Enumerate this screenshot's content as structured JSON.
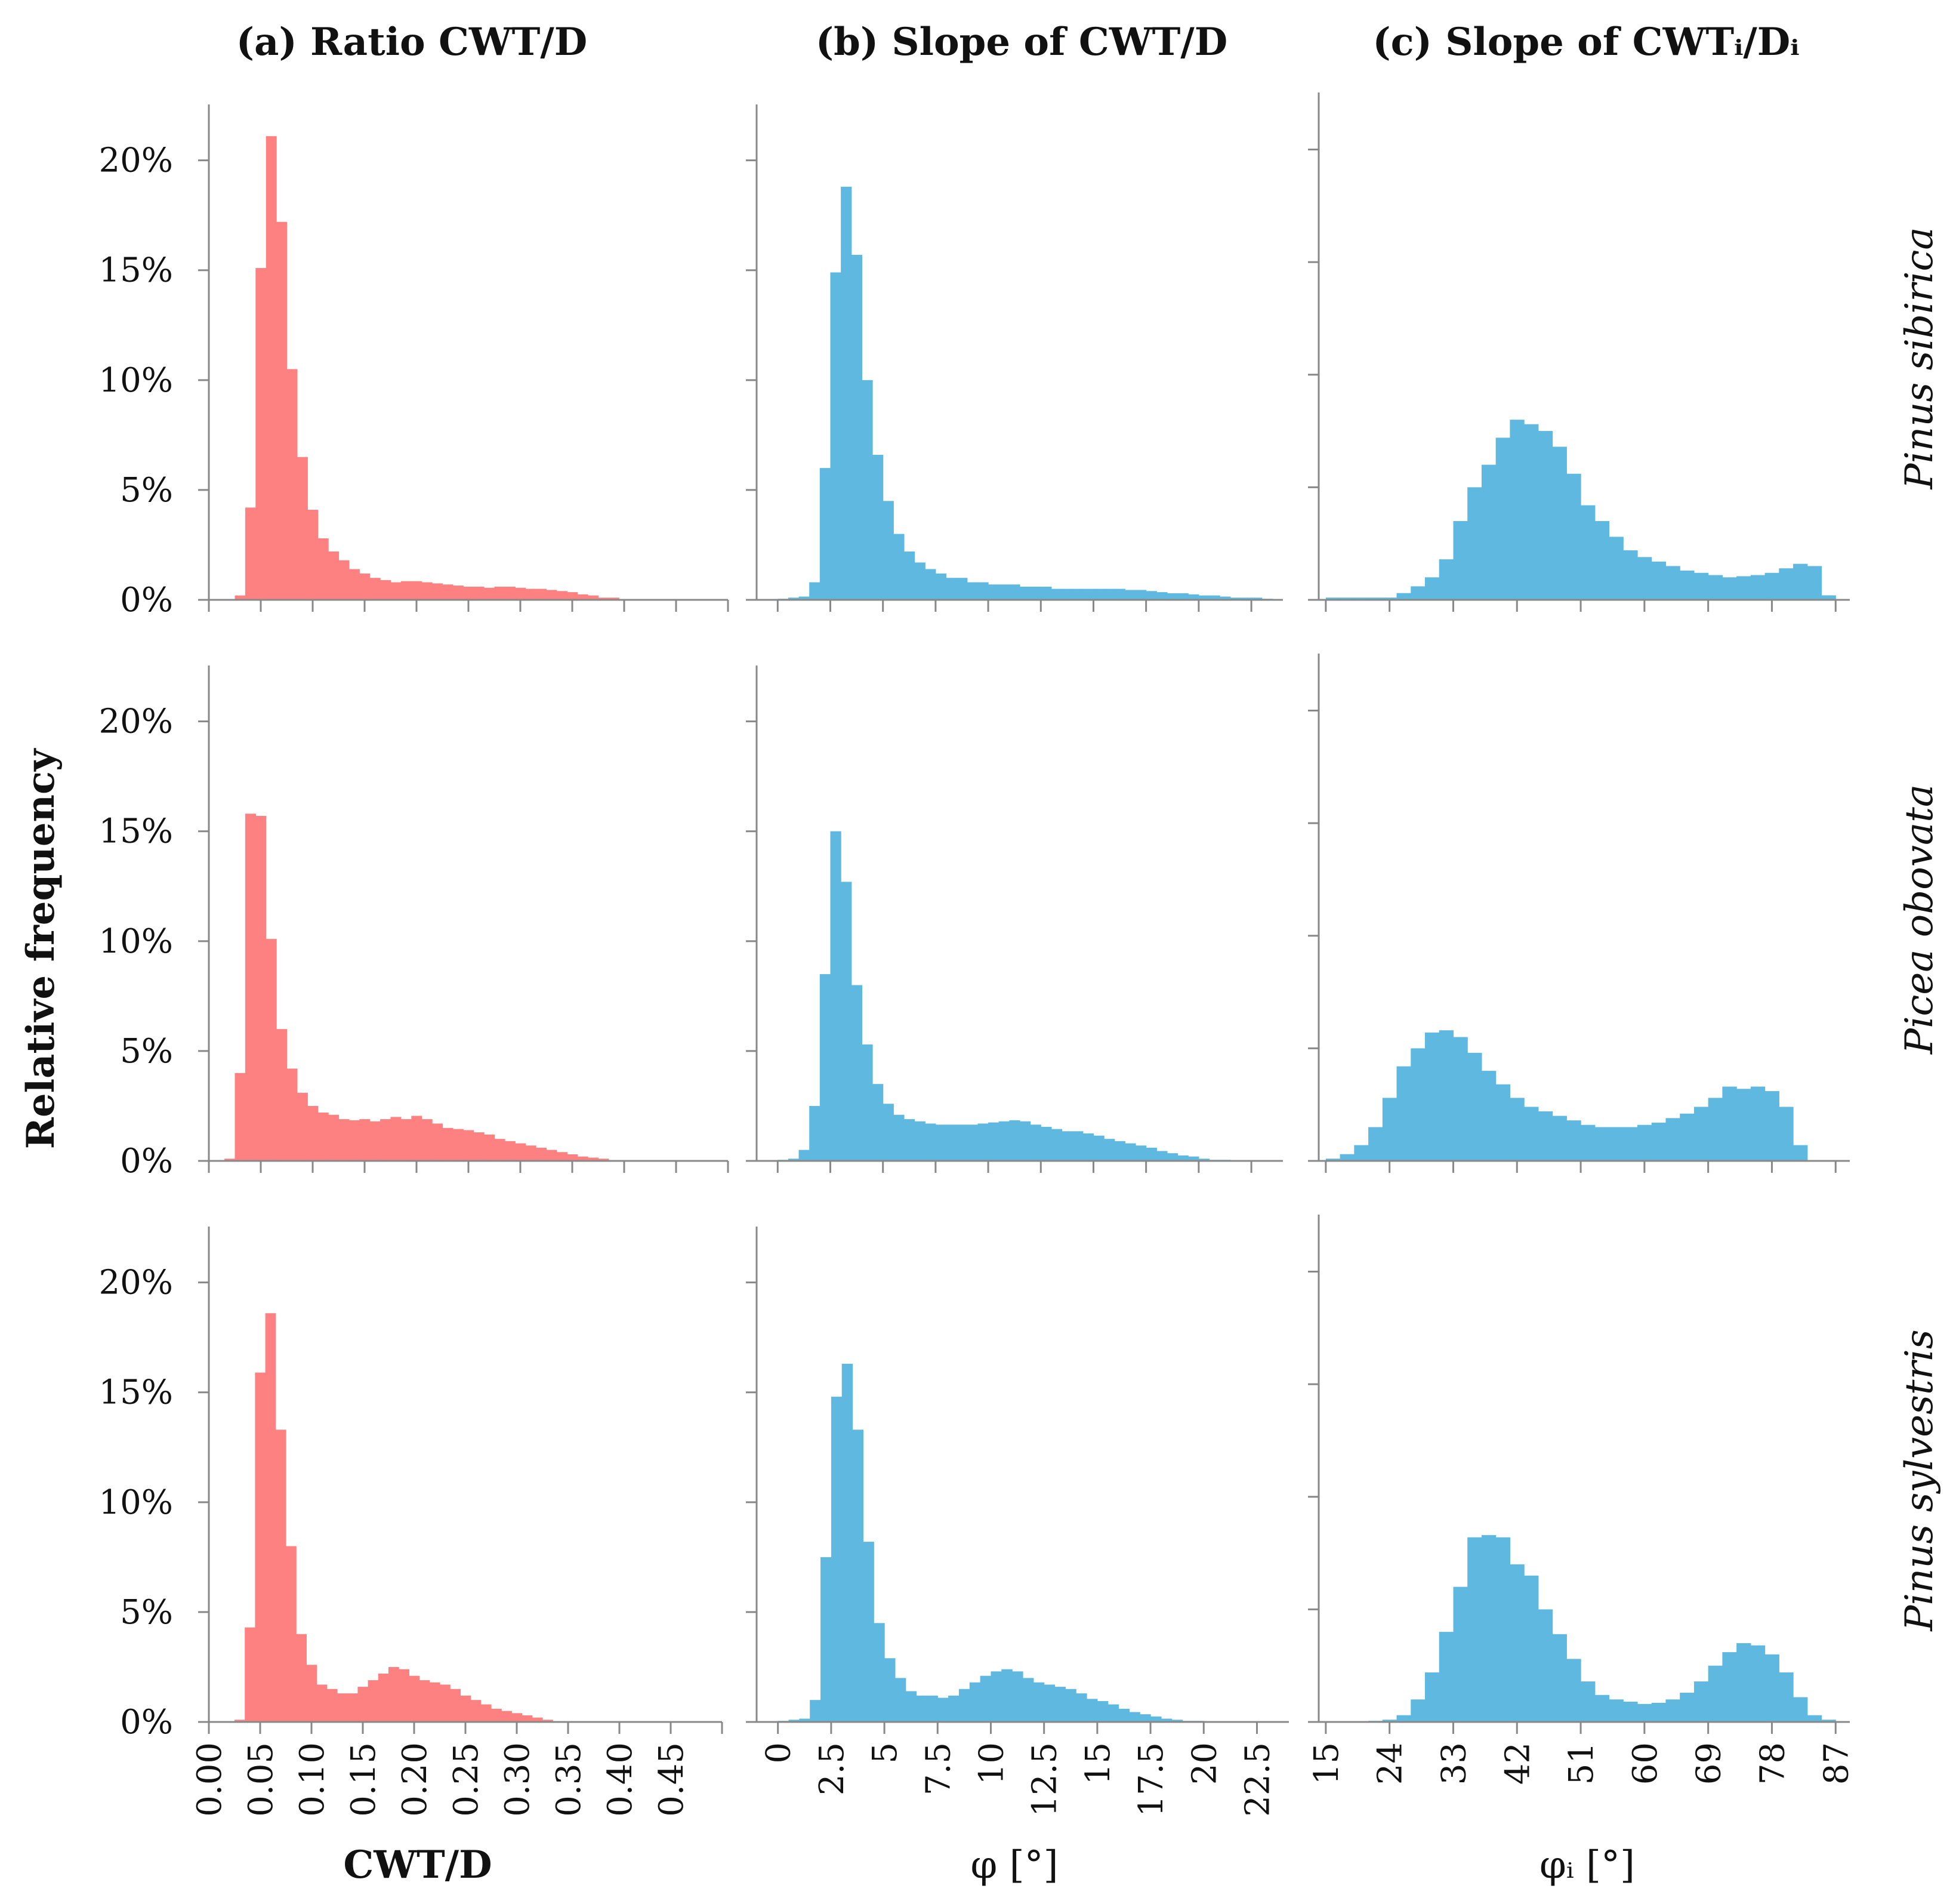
{
  "figure": {
    "column_titles": [
      "(a) Ratio CWT/D",
      "(b) Slope of CWT/D",
      "(c) Slope of CWTᵢ/Dᵢ"
    ],
    "row_labels": [
      "Pinus sibirica",
      "Picea obovata",
      "Pinus sylvestris"
    ],
    "ylabel": "Relative frequency",
    "xlabels": [
      "CWT/D",
      "φ [°]",
      "φᵢ [°]"
    ],
    "colors": {
      "cwt_ratio": "#fd8181",
      "slope": "#5fb8e0",
      "axis": "#888888"
    }
  },
  "chart_data": [
    {
      "type": "bar",
      "id": "a1",
      "title": "(a) Ratio CWT/D",
      "subtitle": "Pinus sibirica",
      "xlabel": "CWT/D",
      "ylabel": "Relative frequency",
      "bin_start": 0.025,
      "bin_width": 0.01,
      "xlim": [
        0,
        0.5
      ],
      "ylim": [
        0,
        22
      ],
      "y_unit": "%",
      "yticks": [
        "0%",
        "5%",
        "10%",
        "15%",
        "20%"
      ],
      "ytick_values": [
        0,
        5,
        10,
        15,
        20
      ],
      "values": [
        0.2,
        4.2,
        15.1,
        21.1,
        17.2,
        10.5,
        6.5,
        4.1,
        2.8,
        2.2,
        1.8,
        1.4,
        1.2,
        1.0,
        0.9,
        0.8,
        0.85,
        0.85,
        0.8,
        0.75,
        0.7,
        0.65,
        0.6,
        0.6,
        0.55,
        0.6,
        0.6,
        0.55,
        0.5,
        0.5,
        0.45,
        0.4,
        0.35,
        0.25,
        0.2,
        0.1,
        0.1
      ]
    },
    {
      "type": "bar",
      "id": "b1",
      "title": "(b) Slope of CWT/D",
      "subtitle": "Pinus sibirica",
      "xlabel": "φ [°]",
      "ylabel": "Relative frequency",
      "bin_start": -1.0,
      "bin_width": 0.5,
      "xlim": [
        -1,
        24
      ],
      "ylim": [
        0,
        22
      ],
      "y_unit": "%",
      "yticks": [],
      "ytick_values": [
        0,
        5,
        10,
        15,
        20
      ],
      "values": [
        0,
        0,
        0.05,
        0.1,
        0.15,
        0.8,
        6.0,
        14.9,
        18.8,
        15.7,
        10.0,
        6.6,
        4.5,
        3.0,
        2.2,
        1.7,
        1.4,
        1.2,
        1.0,
        1.0,
        0.8,
        0.8,
        0.7,
        0.7,
        0.7,
        0.6,
        0.6,
        0.6,
        0.5,
        0.5,
        0.5,
        0.5,
        0.5,
        0.5,
        0.5,
        0.45,
        0.45,
        0.4,
        0.35,
        0.3,
        0.3,
        0.25,
        0.2,
        0.2,
        0.15,
        0.1,
        0.1,
        0.1,
        0.05
      ]
    },
    {
      "type": "bar",
      "id": "c1",
      "title": "(c) Slope of CWTᵢ/Dᵢ",
      "subtitle": "Pinus sibirica",
      "xlabel": "φᵢ [°]",
      "ylabel": "Relative frequency",
      "bin_start": 15,
      "bin_width": 2,
      "xlim": [
        14,
        89
      ],
      "ylim": [
        0,
        22
      ],
      "y_unit": "%",
      "yticks": [],
      "ytick_values": [
        0,
        5,
        10,
        15,
        20
      ],
      "values": [
        0.1,
        0.1,
        0.1,
        0.1,
        0.1,
        0.3,
        0.6,
        1.0,
        1.8,
        3.5,
        5.0,
        6.0,
        7.2,
        8.0,
        7.8,
        7.5,
        6.8,
        5.6,
        4.2,
        3.5,
        2.8,
        2.2,
        1.9,
        1.7,
        1.5,
        1.3,
        1.2,
        1.1,
        1.0,
        1.05,
        1.1,
        1.2,
        1.4,
        1.6,
        1.5,
        0.2
      ]
    },
    {
      "type": "bar",
      "id": "a2",
      "title": "(a) Ratio CWT/D",
      "subtitle": "Picea obovata",
      "xlabel": "CWT/D",
      "ylabel": "Relative frequency",
      "bin_start": 0.015,
      "bin_width": 0.01,
      "xlim": [
        0,
        0.5
      ],
      "ylim": [
        0,
        22
      ],
      "y_unit": "%",
      "yticks": [
        "0%",
        "5%",
        "10%",
        "15%",
        "20%"
      ],
      "ytick_values": [
        0,
        5,
        10,
        15,
        20
      ],
      "values": [
        0.1,
        4.0,
        15.8,
        15.7,
        10.1,
        6.0,
        4.2,
        3.1,
        2.5,
        2.2,
        2.1,
        1.9,
        1.85,
        1.9,
        1.8,
        1.9,
        2.0,
        1.9,
        2.05,
        1.9,
        1.7,
        1.5,
        1.45,
        1.4,
        1.3,
        1.2,
        1.0,
        0.9,
        0.8,
        0.7,
        0.6,
        0.5,
        0.4,
        0.3,
        0.2,
        0.15,
        0.1
      ]
    },
    {
      "type": "bar",
      "id": "b2",
      "title": "(b) Slope of CWT/D",
      "subtitle": "Picea obovata",
      "xlabel": "φ [°]",
      "ylabel": "Relative frequency",
      "bin_start": -1.0,
      "bin_width": 0.5,
      "xlim": [
        -1,
        24
      ],
      "ylim": [
        0,
        22
      ],
      "y_unit": "%",
      "yticks": [],
      "ytick_values": [
        0,
        5,
        10,
        15,
        20
      ],
      "values": [
        0,
        0,
        0.05,
        0.1,
        0.5,
        2.5,
        8.5,
        15.0,
        12.7,
        8.0,
        5.3,
        3.5,
        2.6,
        2.1,
        1.9,
        1.8,
        1.7,
        1.65,
        1.65,
        1.65,
        1.65,
        1.7,
        1.75,
        1.8,
        1.85,
        1.8,
        1.65,
        1.55,
        1.45,
        1.35,
        1.35,
        1.25,
        1.15,
        1.0,
        0.9,
        0.8,
        0.7,
        0.6,
        0.45,
        0.35,
        0.25,
        0.2,
        0.1,
        0.05,
        0.05
      ]
    },
    {
      "type": "bar",
      "id": "c2",
      "title": "(c) Slope of CWTᵢ/Dᵢ",
      "subtitle": "Picea obovata",
      "xlabel": "φᵢ [°]",
      "ylabel": "Relative frequency",
      "bin_start": 15,
      "bin_width": 2,
      "xlim": [
        14,
        89
      ],
      "ylim": [
        0,
        22
      ],
      "y_unit": "%",
      "yticks": [],
      "ytick_values": [
        0,
        5,
        10,
        15,
        20
      ],
      "values": [
        0.1,
        0.3,
        0.7,
        1.5,
        2.8,
        4.2,
        5.0,
        5.7,
        5.8,
        5.5,
        4.8,
        4.0,
        3.4,
        2.8,
        2.4,
        2.2,
        2.0,
        1.8,
        1.6,
        1.5,
        1.5,
        1.5,
        1.6,
        1.7,
        1.9,
        2.1,
        2.4,
        2.8,
        3.3,
        3.2,
        3.3,
        3.1,
        2.4,
        0.7
      ]
    },
    {
      "type": "bar",
      "id": "a3",
      "title": "(a) Ratio CWT/D",
      "subtitle": "Pinus sylvestris",
      "xlabel": "CWT/D",
      "ylabel": "Relative frequency",
      "bin_start": 0.025,
      "bin_width": 0.01,
      "xlim": [
        0,
        0.5
      ],
      "ylim": [
        0,
        22
      ],
      "y_unit": "%",
      "yticks": [
        "0%",
        "5%",
        "10%",
        "15%",
        "20%"
      ],
      "ytick_values": [
        0,
        5,
        10,
        15,
        20
      ],
      "xticks": [
        "0.00",
        "0.05",
        "0.10",
        "0.15",
        "0.20",
        "0.25",
        "0.30",
        "0.35",
        "0.40",
        "0.45"
      ],
      "xtick_values": [
        0,
        0.05,
        0.1,
        0.15,
        0.2,
        0.25,
        0.3,
        0.35,
        0.4,
        0.45
      ],
      "values": [
        0.1,
        4.3,
        15.9,
        18.6,
        13.3,
        8.0,
        4.0,
        2.6,
        1.7,
        1.5,
        1.3,
        1.3,
        1.6,
        1.9,
        2.2,
        2.5,
        2.4,
        2.1,
        1.9,
        1.8,
        1.7,
        1.5,
        1.2,
        1.0,
        0.8,
        0.6,
        0.5,
        0.4,
        0.3,
        0.2,
        0.1
      ]
    },
    {
      "type": "bar",
      "id": "b3",
      "title": "(b) Slope of CWT/D",
      "subtitle": "Pinus sylvestris",
      "xlabel": "φ [°]",
      "ylabel": "Relative frequency",
      "bin_start": -1.0,
      "bin_width": 0.5,
      "xlim": [
        -1,
        24
      ],
      "ylim": [
        0,
        22
      ],
      "y_unit": "%",
      "yticks": [],
      "ytick_values": [
        0,
        5,
        10,
        15,
        20
      ],
      "xticks": [
        "0",
        "2.5",
        "5",
        "7.5",
        "10",
        "12.5",
        "15",
        "17.5",
        "20",
        "22.5"
      ],
      "xtick_values": [
        0,
        2.5,
        5,
        7.5,
        10,
        12.5,
        15,
        17.5,
        20,
        22.5
      ],
      "values": [
        0,
        0,
        0.05,
        0.1,
        0.15,
        1.0,
        7.5,
        14.8,
        16.3,
        13.3,
        8.2,
        4.5,
        2.9,
        2.0,
        1.4,
        1.2,
        1.2,
        1.1,
        1.2,
        1.5,
        1.8,
        2.1,
        2.3,
        2.4,
        2.3,
        2.0,
        1.8,
        1.7,
        1.6,
        1.5,
        1.3,
        1.05,
        0.95,
        0.8,
        0.6,
        0.45,
        0.35,
        0.25,
        0.15,
        0.1,
        0.05,
        0.05
      ]
    },
    {
      "type": "bar",
      "id": "c3",
      "title": "(c) Slope of CWTᵢ/Dᵢ",
      "subtitle": "Pinus sylvestris",
      "xlabel": "φᵢ [°]",
      "ylabel": "Relative frequency",
      "bin_start": 15,
      "bin_width": 2,
      "xlim": [
        14,
        89
      ],
      "ylim": [
        0,
        22
      ],
      "y_unit": "%",
      "yticks": [],
      "ytick_values": [
        0,
        5,
        10,
        15,
        20
      ],
      "xticks": [
        "15",
        "24",
        "33",
        "42",
        "51",
        "60",
        "69",
        "78",
        "87"
      ],
      "xtick_values": [
        15,
        24,
        33,
        42,
        51,
        60,
        69,
        78,
        87
      ],
      "values": [
        0,
        0,
        0,
        0.05,
        0.1,
        0.3,
        1.0,
        2.2,
        4.0,
        6.0,
        8.2,
        8.3,
        8.2,
        7.0,
        6.5,
        5.0,
        3.9,
        2.8,
        1.8,
        1.2,
        1.0,
        0.9,
        0.8,
        0.85,
        1.0,
        1.3,
        1.8,
        2.5,
        3.1,
        3.5,
        3.4,
        3.0,
        2.2,
        1.1,
        0.3,
        0.1
      ]
    }
  ]
}
